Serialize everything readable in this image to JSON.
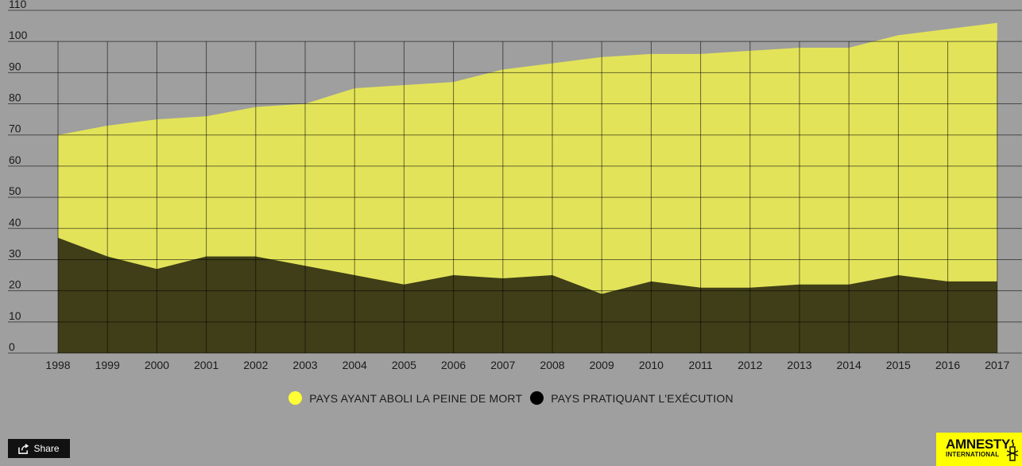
{
  "chart_data": {
    "type": "area",
    "stacked": false,
    "x": [
      1998,
      1999,
      2000,
      2001,
      2002,
      2003,
      2004,
      2005,
      2006,
      2007,
      2008,
      2009,
      2010,
      2011,
      2012,
      2013,
      2014,
      2015,
      2016,
      2017
    ],
    "series": [
      {
        "name": "PAYS AYANT ABOLI LA PEINE DE MORT",
        "color": "#e3e35a",
        "values": [
          70,
          73,
          75,
          76,
          79,
          80,
          85,
          86,
          87,
          91,
          93,
          95,
          96,
          96,
          97,
          98,
          98,
          102,
          104,
          106
        ]
      },
      {
        "name": "PAYS PRATIQUANT L'EXÉCUTION",
        "color": "#3f3e18",
        "values": [
          37,
          31,
          27,
          31,
          31,
          28,
          25,
          22,
          25,
          24,
          25,
          19,
          23,
          21,
          21,
          22,
          22,
          25,
          23,
          23
        ]
      }
    ],
    "ylim": [
      0,
      110
    ],
    "yticks": [
      0,
      10,
      20,
      30,
      40,
      50,
      60,
      70,
      80,
      90,
      100,
      110
    ],
    "grid": true,
    "legend": "bottom-center"
  },
  "share": {
    "label": "Share",
    "icon": "share-icon"
  },
  "logo": {
    "line1": "AMNESTY",
    "line2": "INTERNATIONAL",
    "bg": "#ffff00"
  }
}
